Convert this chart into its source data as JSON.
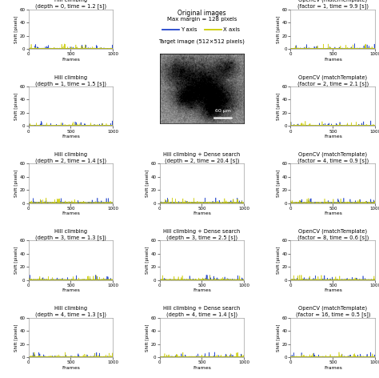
{
  "fig_title_line1": "Original images",
  "fig_title_line2": "Max margin = 128 pixels",
  "legend_y": "Y axis",
  "legend_x": "X axis",
  "center_label": "Target image (512×512 pixels)",
  "scale_bar_label": "60 μm",
  "y_label": "Shift [pixels]",
  "x_label": "Frames",
  "y_lim": [
    0,
    60
  ],
  "y_ticks": [
    0,
    20,
    40,
    60
  ],
  "x_lim": [
    0,
    1000
  ],
  "x_ticks": [
    0,
    500,
    1000
  ],
  "color_y": "#2244cc",
  "color_x": "#cccc00",
  "bg_color": "#ffffff",
  "plots": [
    {
      "row": 0,
      "col": 0,
      "title": "Hill climbing",
      "subtitle": "(depth = 0, time = 1.2 [s])"
    },
    {
      "row": 1,
      "col": 0,
      "title": "Hill climbing",
      "subtitle": "(depth = 1, time = 1.5 [s])"
    },
    {
      "row": 2,
      "col": 0,
      "title": "Hill climbing",
      "subtitle": "(depth = 2, time = 1.4 [s])"
    },
    {
      "row": 3,
      "col": 0,
      "title": "Hill climbing",
      "subtitle": "(depth = 3, time = 1.3 [s])"
    },
    {
      "row": 4,
      "col": 0,
      "title": "Hill climbing",
      "subtitle": "(depth = 4, time = 1.3 [s])"
    },
    {
      "row": 2,
      "col": 1,
      "title": "Hill climbing + Dense search",
      "subtitle": "(depth = 2, time = 20.4 [s])"
    },
    {
      "row": 3,
      "col": 1,
      "title": "Hill climbing + Dense search",
      "subtitle": "(depth = 3, time = 2.5 [s])"
    },
    {
      "row": 4,
      "col": 1,
      "title": "Hill climbing + Dense search",
      "subtitle": "(depth = 4, time = 1.4 [s])"
    },
    {
      "row": 0,
      "col": 2,
      "title": "OpenCV (matchTemplate)",
      "subtitle": "(factor = 1, time = 9.9 [s])"
    },
    {
      "row": 1,
      "col": 2,
      "title": "OpenCV (matchTemplate)",
      "subtitle": "(factor = 2, time = 2.1 [s])"
    },
    {
      "row": 2,
      "col": 2,
      "title": "OpenCV (matchTemplate)",
      "subtitle": "(factor = 4, time = 0.9 [s])"
    },
    {
      "row": 3,
      "col": 2,
      "title": "OpenCV (matchTemplate)",
      "subtitle": "(factor = 8, time = 0.6 [s])"
    },
    {
      "row": 4,
      "col": 2,
      "title": "OpenCV (matchTemplate)",
      "subtitle": "(factor = 16, time = 0.5 [s])"
    }
  ]
}
